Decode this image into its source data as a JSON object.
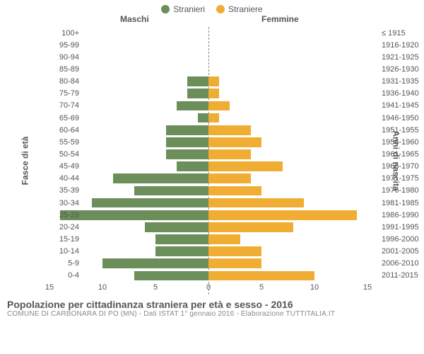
{
  "legend": {
    "male": "Stranieri",
    "female": "Straniere"
  },
  "colors": {
    "male": "#6b8e5a",
    "female": "#f0ad33",
    "text": "#555555",
    "subtext": "#888888",
    "background": "#ffffff"
  },
  "headers": {
    "left": "Maschi",
    "right": "Femmine"
  },
  "axis": {
    "left_title": "Fasce di età",
    "right_title": "Anni di nascita",
    "x_ticks": [
      15,
      10,
      5,
      0,
      5,
      10,
      15
    ],
    "x_max": 16
  },
  "rows": [
    {
      "age": "100+",
      "birth": "≤ 1915",
      "m": 0,
      "f": 0
    },
    {
      "age": "95-99",
      "birth": "1916-1920",
      "m": 0,
      "f": 0
    },
    {
      "age": "90-94",
      "birth": "1921-1925",
      "m": 0,
      "f": 0
    },
    {
      "age": "85-89",
      "birth": "1926-1930",
      "m": 0,
      "f": 0
    },
    {
      "age": "80-84",
      "birth": "1931-1935",
      "m": 2,
      "f": 1
    },
    {
      "age": "75-79",
      "birth": "1936-1940",
      "m": 2,
      "f": 1
    },
    {
      "age": "70-74",
      "birth": "1941-1945",
      "m": 3,
      "f": 2
    },
    {
      "age": "65-69",
      "birth": "1946-1950",
      "m": 1,
      "f": 1
    },
    {
      "age": "60-64",
      "birth": "1951-1955",
      "m": 4,
      "f": 4
    },
    {
      "age": "55-59",
      "birth": "1956-1960",
      "m": 4,
      "f": 5
    },
    {
      "age": "50-54",
      "birth": "1961-1965",
      "m": 4,
      "f": 4
    },
    {
      "age": "45-49",
      "birth": "1966-1970",
      "m": 3,
      "f": 7
    },
    {
      "age": "40-44",
      "birth": "1971-1975",
      "m": 9,
      "f": 4
    },
    {
      "age": "35-39",
      "birth": "1976-1980",
      "m": 7,
      "f": 5
    },
    {
      "age": "30-34",
      "birth": "1981-1985",
      "m": 11,
      "f": 9
    },
    {
      "age": "25-29",
      "birth": "1986-1990",
      "m": 14,
      "f": 14
    },
    {
      "age": "20-24",
      "birth": "1991-1995",
      "m": 6,
      "f": 8
    },
    {
      "age": "15-19",
      "birth": "1996-2000",
      "m": 5,
      "f": 3
    },
    {
      "age": "10-14",
      "birth": "2001-2005",
      "m": 5,
      "f": 5
    },
    {
      "age": "5-9",
      "birth": "2006-2010",
      "m": 10,
      "f": 5
    },
    {
      "age": "0-4",
      "birth": "2011-2015",
      "m": 7,
      "f": 10
    }
  ],
  "title": "Popolazione per cittadinanza straniera per età e sesso - 2016",
  "subtitle": "COMUNE DI CARBONARA DI PO (MN) - Dati ISTAT 1° gennaio 2016 - Elaborazione TUTTITALIA.IT",
  "fontsize": {
    "legend": 12,
    "headers": 12,
    "ticks": 11,
    "title": 14,
    "subtitle": 10
  }
}
